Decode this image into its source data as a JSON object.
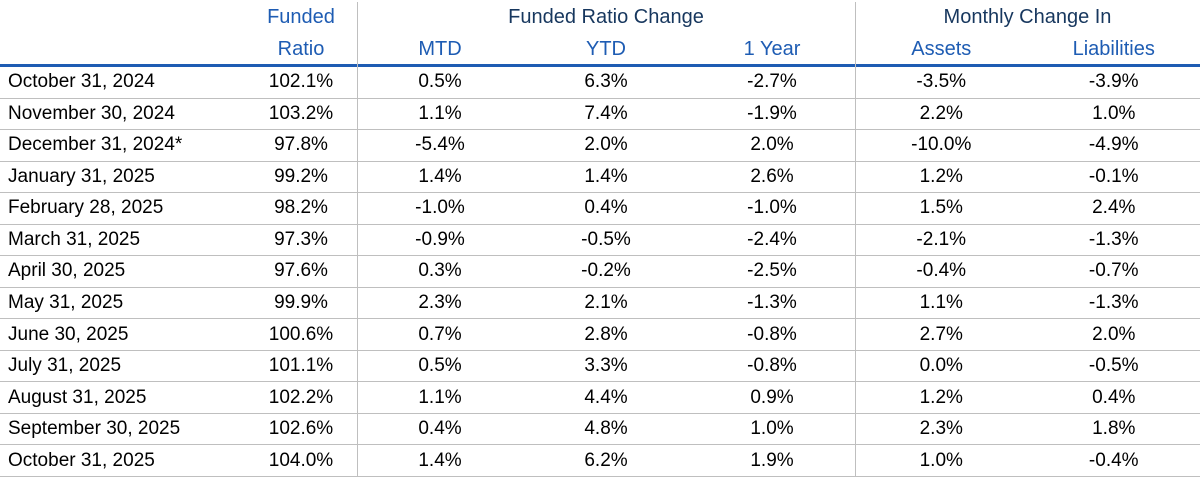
{
  "table": {
    "header": {
      "funded_ratio": {
        "line1": "Funded",
        "line2": "Ratio"
      },
      "groups": [
        {
          "label": "Funded Ratio Change",
          "sub": [
            "MTD",
            "YTD",
            "1 Year"
          ]
        },
        {
          "label": "Monthly Change In",
          "sub": [
            "Assets",
            "Liabilities"
          ]
        }
      ]
    },
    "rows": [
      {
        "date": "October 31, 2024",
        "funded_ratio": "102.1%",
        "mtd": "0.5%",
        "ytd": "6.3%",
        "one_year": "-2.7%",
        "assets": "-3.5%",
        "liabilities": "-3.9%"
      },
      {
        "date": "November 30, 2024",
        "funded_ratio": "103.2%",
        "mtd": "1.1%",
        "ytd": "7.4%",
        "one_year": "-1.9%",
        "assets": "2.2%",
        "liabilities": "1.0%"
      },
      {
        "date": "December 31, 2024*",
        "funded_ratio": "97.8%",
        "mtd": "-5.4%",
        "ytd": "2.0%",
        "one_year": "2.0%",
        "assets": "-10.0%",
        "liabilities": "-4.9%"
      },
      {
        "date": "January 31, 2025",
        "funded_ratio": "99.2%",
        "mtd": "1.4%",
        "ytd": "1.4%",
        "one_year": "2.6%",
        "assets": "1.2%",
        "liabilities": "-0.1%"
      },
      {
        "date": "February 28, 2025",
        "funded_ratio": "98.2%",
        "mtd": "-1.0%",
        "ytd": "0.4%",
        "one_year": "-1.0%",
        "assets": "1.5%",
        "liabilities": "2.4%"
      },
      {
        "date": "March 31, 2025",
        "funded_ratio": "97.3%",
        "mtd": "-0.9%",
        "ytd": "-0.5%",
        "one_year": "-2.4%",
        "assets": "-2.1%",
        "liabilities": "-1.3%"
      },
      {
        "date": "April 30, 2025",
        "funded_ratio": "97.6%",
        "mtd": "0.3%",
        "ytd": "-0.2%",
        "one_year": "-2.5%",
        "assets": "-0.4%",
        "liabilities": "-0.7%"
      },
      {
        "date": "May 31, 2025",
        "funded_ratio": "99.9%",
        "mtd": "2.3%",
        "ytd": "2.1%",
        "one_year": "-1.3%",
        "assets": "1.1%",
        "liabilities": "-1.3%"
      },
      {
        "date": "June 30, 2025",
        "funded_ratio": "100.6%",
        "mtd": "0.7%",
        "ytd": "2.8%",
        "one_year": "-0.8%",
        "assets": "2.7%",
        "liabilities": "2.0%"
      },
      {
        "date": "July 31, 2025",
        "funded_ratio": "101.1%",
        "mtd": "0.5%",
        "ytd": "3.3%",
        "one_year": "-0.8%",
        "assets": "0.0%",
        "liabilities": "-0.5%"
      },
      {
        "date": "August 31, 2025",
        "funded_ratio": "102.2%",
        "mtd": "1.1%",
        "ytd": "4.4%",
        "one_year": "0.9%",
        "assets": "1.2%",
        "liabilities": "0.4%"
      },
      {
        "date": "September 30, 2025",
        "funded_ratio": "102.6%",
        "mtd": "0.4%",
        "ytd": "4.8%",
        "one_year": "1.0%",
        "assets": "2.3%",
        "liabilities": "1.8%"
      },
      {
        "date": "October 31, 2025",
        "funded_ratio": "104.0%",
        "mtd": "1.4%",
        "ytd": "6.2%",
        "one_year": "1.9%",
        "assets": "1.0%",
        "liabilities": "-0.4%"
      }
    ]
  },
  "colors": {
    "header_group_navy": "#17375E",
    "header_sub_blue": "#1E5CB3",
    "rule_blue": "#1E5CB3",
    "grid_gray": "#BFBFBF",
    "text_black": "#000000",
    "background": "#FFFFFF"
  }
}
